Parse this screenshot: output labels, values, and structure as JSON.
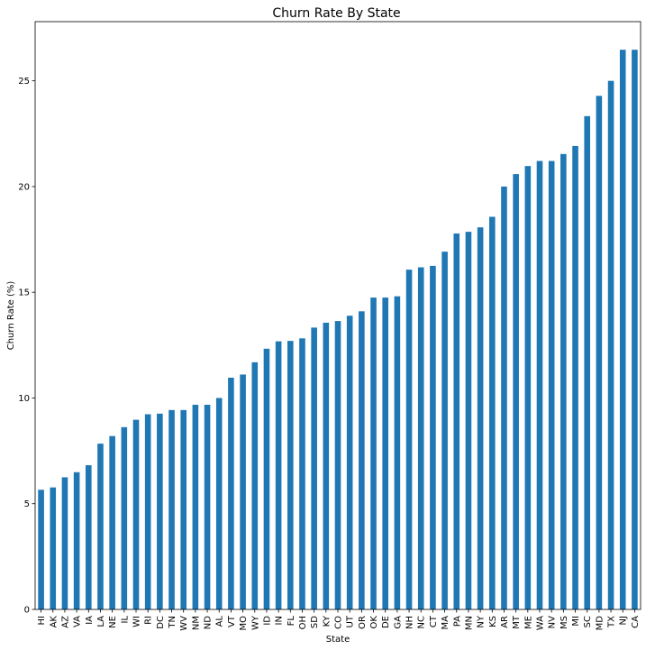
{
  "chart_data": {
    "type": "bar",
    "title": "Churn Rate By State",
    "xlabel": "State",
    "ylabel": "Churn Rate (%)",
    "ylim": [
      0,
      27.8
    ],
    "yticks": [
      0,
      5,
      10,
      15,
      20,
      25
    ],
    "grid": false,
    "legend": "none",
    "bar_color": "#1f77b4",
    "categories": [
      "HI",
      "AK",
      "AZ",
      "VA",
      "IA",
      "LA",
      "NE",
      "IL",
      "WI",
      "RI",
      "DC",
      "TN",
      "WV",
      "NM",
      "ND",
      "AL",
      "VT",
      "MO",
      "WY",
      "ID",
      "IN",
      "FL",
      "OH",
      "SD",
      "KY",
      "CO",
      "UT",
      "OR",
      "OK",
      "DE",
      "GA",
      "NH",
      "NC",
      "CT",
      "MA",
      "PA",
      "MN",
      "NY",
      "KS",
      "AR",
      "MT",
      "ME",
      "WA",
      "NV",
      "MS",
      "MI",
      "SC",
      "MD",
      "TX",
      "NJ",
      "CA"
    ],
    "values": [
      5.66,
      5.77,
      6.25,
      6.49,
      6.82,
      7.84,
      8.2,
      8.62,
      8.97,
      9.23,
      9.26,
      9.43,
      9.43,
      9.68,
      9.68,
      10.0,
      10.96,
      11.11,
      11.69,
      12.33,
      12.68,
      12.7,
      12.82,
      13.33,
      13.56,
      13.64,
      13.89,
      14.1,
      14.75,
      14.75,
      14.81,
      16.07,
      16.18,
      16.25,
      16.92,
      17.78,
      17.86,
      18.07,
      18.57,
      20.0,
      20.59,
      20.97,
      21.21,
      21.21,
      21.54,
      21.92,
      23.33,
      24.29,
      25.0,
      26.47,
      26.47
    ]
  }
}
